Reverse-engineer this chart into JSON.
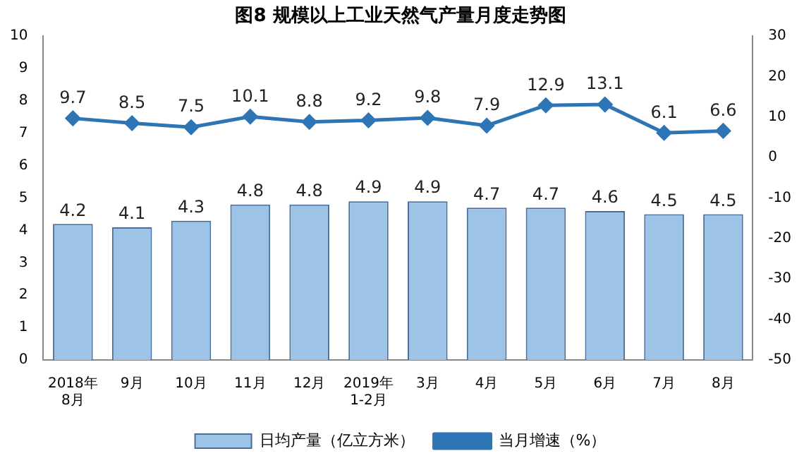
{
  "chart_data": {
    "type": "bar",
    "title": "图8 规模以上工业天然气产量月度走势图",
    "categories": [
      "2018年\n8月",
      "9月",
      "10月",
      "11月",
      "12月",
      "2019年\n1-2月",
      "3月",
      "4月",
      "5月",
      "6月",
      "7月",
      "8月"
    ],
    "series": [
      {
        "name": "日均产量（亿立方米）",
        "color": "#9dc3e6",
        "values": [
          4.2,
          4.1,
          4.3,
          4.8,
          4.8,
          4.9,
          4.9,
          4.7,
          4.7,
          4.6,
          4.5,
          4.5
        ]
      },
      {
        "name": "当月增速（%）",
        "type": "line",
        "axis": "y2",
        "color": "#2e75b6",
        "marker": "diamond",
        "values": [
          9.7,
          8.5,
          7.5,
          10.1,
          8.8,
          9.2,
          9.8,
          7.9,
          12.9,
          13.1,
          6.1,
          6.6
        ]
      }
    ],
    "ylim": [
      0,
      10
    ],
    "yticks": [
      0,
      1,
      2,
      3,
      4,
      5,
      6,
      7,
      8,
      9,
      10
    ],
    "y2lim": [
      -50,
      30
    ],
    "y2ticks": [
      -50,
      -40,
      -30,
      -20,
      -10,
      0,
      10,
      20,
      30
    ],
    "grid": false,
    "legend": "bottom",
    "data_labels": true
  }
}
